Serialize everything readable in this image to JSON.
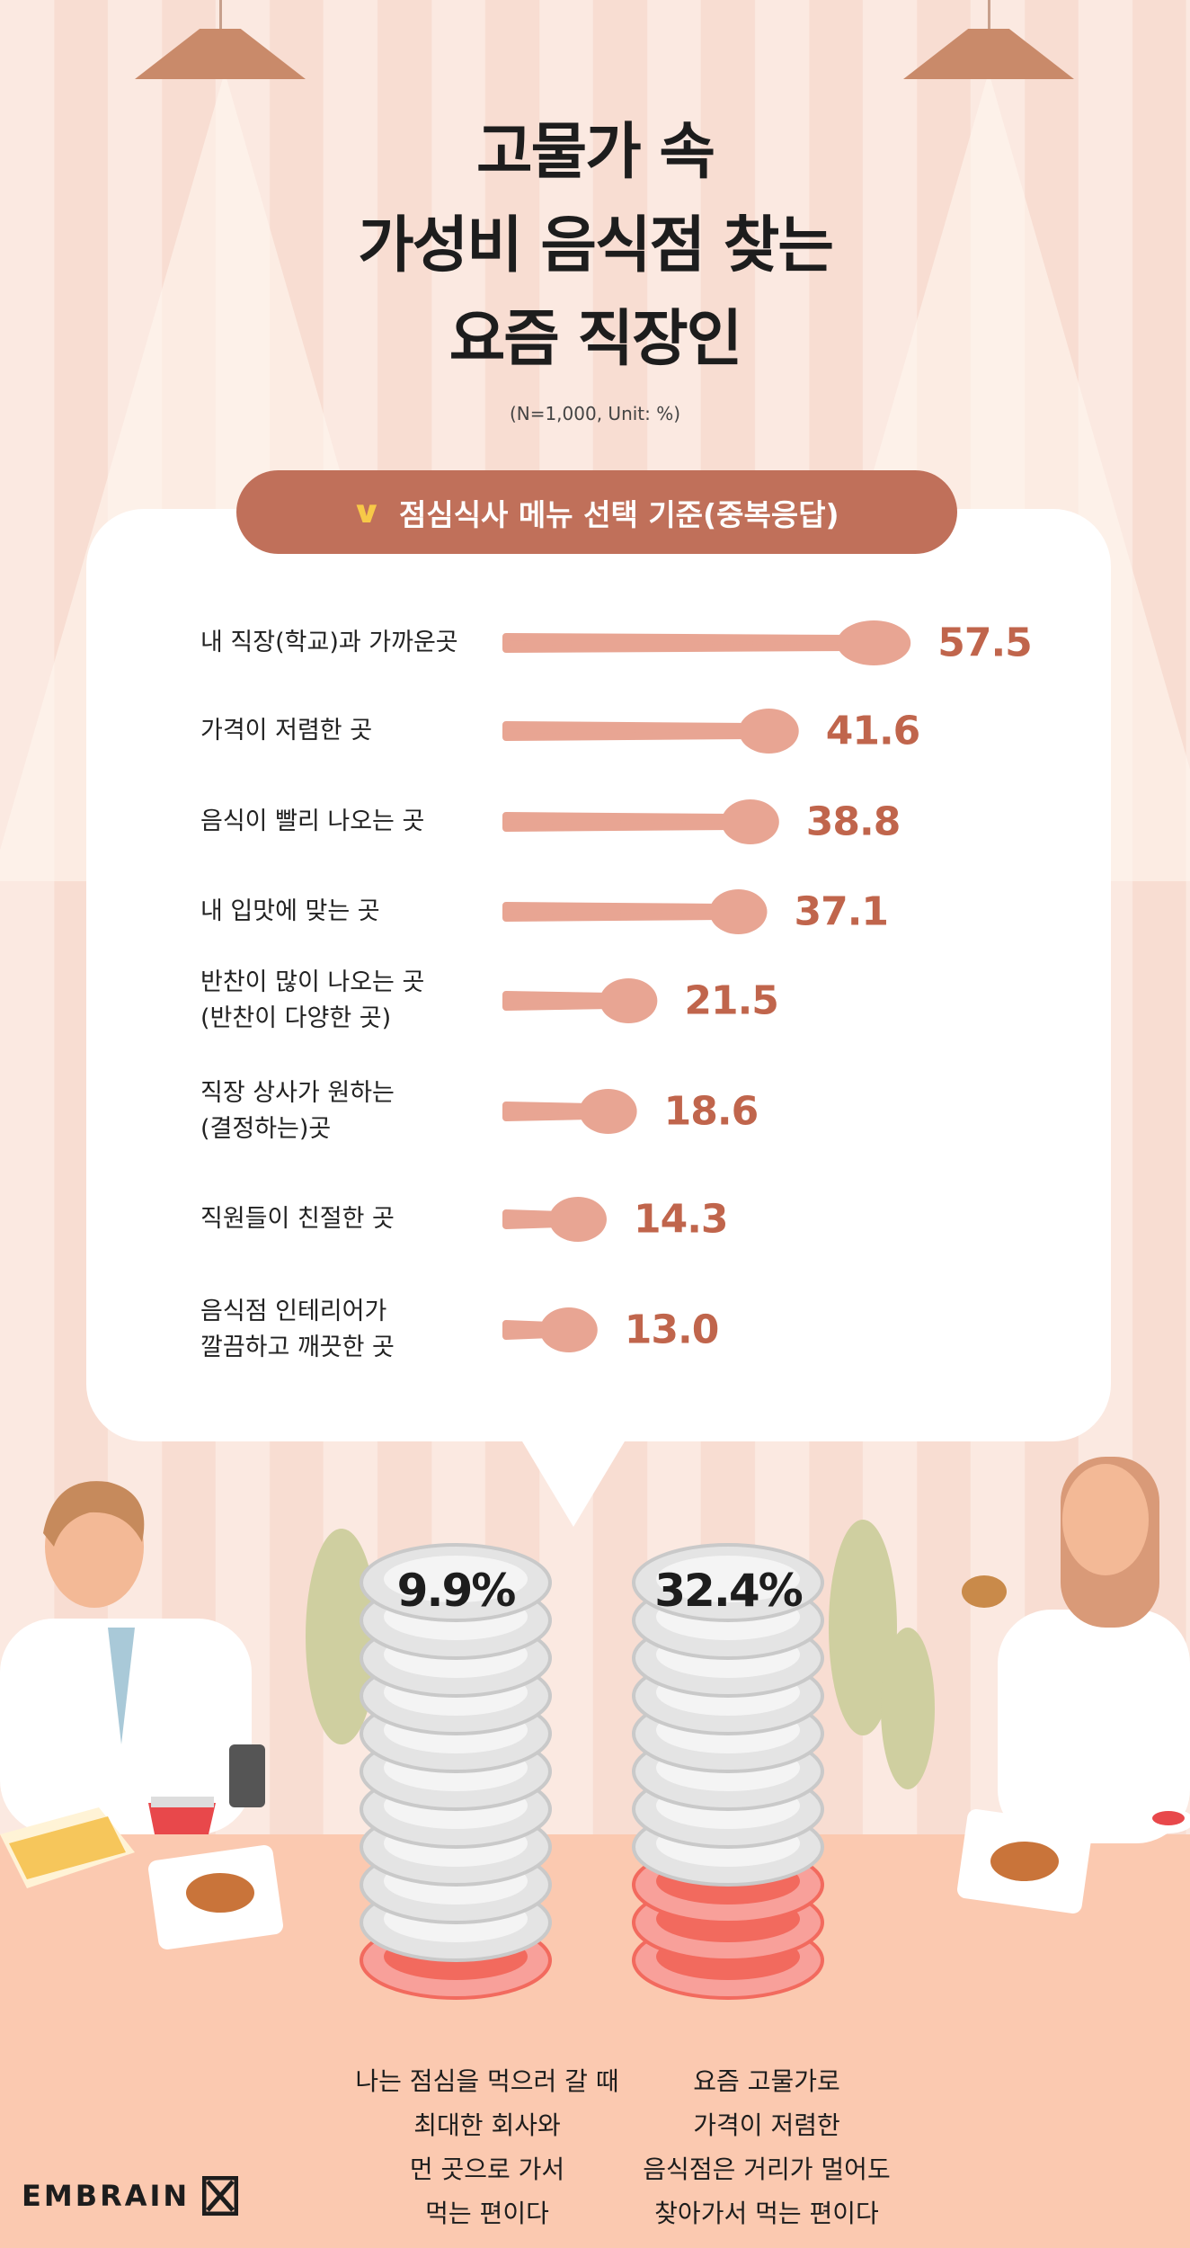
{
  "title": {
    "lines": [
      "고물가 속",
      "가성비 음식점 찾는",
      "요즘 직장인"
    ]
  },
  "note": "(N=1,000, Unit: %)",
  "section": {
    "label": "점심식사 메뉴 선택 기준(중복응답)",
    "icon": "chevron-down-icon"
  },
  "colors": {
    "spoon": "#e8a593",
    "value": "#c0654c",
    "pill": "#c0705a",
    "table": "#fbc9b0",
    "plate_red": "#f26a5e"
  },
  "chart_data": {
    "type": "bar",
    "title": "점심식사 메뉴 선택 기준(중복응답)",
    "categories": [
      "내 직장(학교)과 가까운곳",
      "가격이 저렴한 곳",
      "음식이 빨리 나오는 곳",
      "내 입맛에 맞는 곳",
      "반찬이 많이 나오는 곳\n(반찬이 다양한 곳)",
      "직장 상사가 원하는\n(결정하는)곳",
      "직원들이 친절한 곳",
      "음식점 인테리어가\n깔끔하고 깨끗한 곳"
    ],
    "values": [
      57.5,
      41.6,
      38.8,
      37.1,
      21.5,
      18.6,
      14.3,
      13.0
    ],
    "value_labels": [
      "57.5",
      "41.6",
      "38.8",
      "37.1",
      "21.5",
      "18.6",
      "14.3",
      "13.0"
    ],
    "unit": "%",
    "orientation": "horizontal"
  },
  "plates": [
    {
      "percent": "9.9%",
      "value": 9.9,
      "text": "나는 점심을 먹으러 갈 때\n최대한 회사와\n먼 곳으로 가서\n먹는 편이다"
    },
    {
      "percent": "32.4%",
      "value": 32.4,
      "text": "요즘 고물가로\n가격이 저렴한\n음식점은 거리가 멀어도\n찾아가서 먹는 편이다"
    }
  ],
  "brand": "EMBRAIN"
}
